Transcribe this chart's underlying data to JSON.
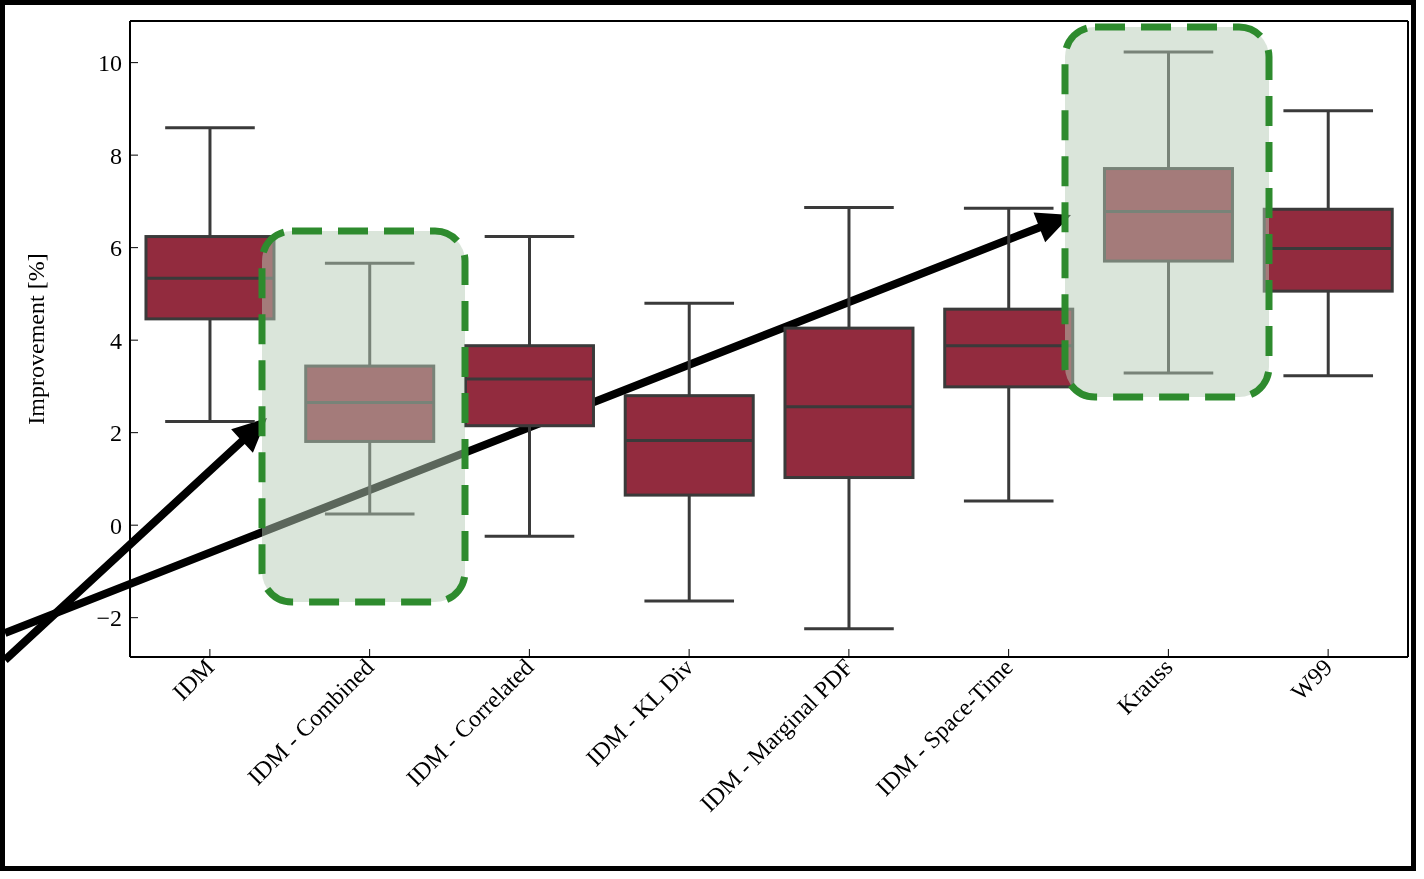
{
  "chart_data": {
    "type": "box",
    "ylabel": "Improvement [%]",
    "categories": [
      "IDM",
      "IDM - Combined",
      "IDM - Correlated",
      "IDM - KL Div",
      "IDM - Marginal PDF",
      "IDM - Space-Time",
      "Krauss",
      "W99"
    ],
    "color": "#922b3e",
    "boxes": [
      {
        "low": 2.24,
        "q1": 4.46,
        "median": 5.34,
        "q3": 6.24,
        "high": 8.59
      },
      {
        "low": 0.24,
        "q1": 1.81,
        "median": 2.65,
        "q3": 3.44,
        "high": 5.66
      },
      {
        "low": -0.24,
        "q1": 2.15,
        "median": 3.16,
        "q3": 3.88,
        "high": 6.24
      },
      {
        "low": -1.64,
        "q1": 0.65,
        "median": 1.83,
        "q3": 2.8,
        "high": 4.8
      },
      {
        "low": -2.24,
        "q1": 1.03,
        "median": 2.56,
        "q3": 4.26,
        "high": 6.87
      },
      {
        "low": 0.52,
        "q1": 2.99,
        "median": 3.88,
        "q3": 4.67,
        "high": 6.85
      },
      {
        "low": 3.29,
        "q1": 5.71,
        "median": 6.78,
        "q3": 7.71,
        "high": 10.23
      },
      {
        "low": 3.23,
        "q1": 5.06,
        "median": 5.98,
        "q3": 6.83,
        "high": 8.96
      }
    ],
    "ylim": [
      -2.85,
      10.9
    ],
    "yticks": [
      {
        "value": -2,
        "label": "−2"
      },
      0,
      2,
      4,
      6,
      8,
      10
    ]
  }
}
